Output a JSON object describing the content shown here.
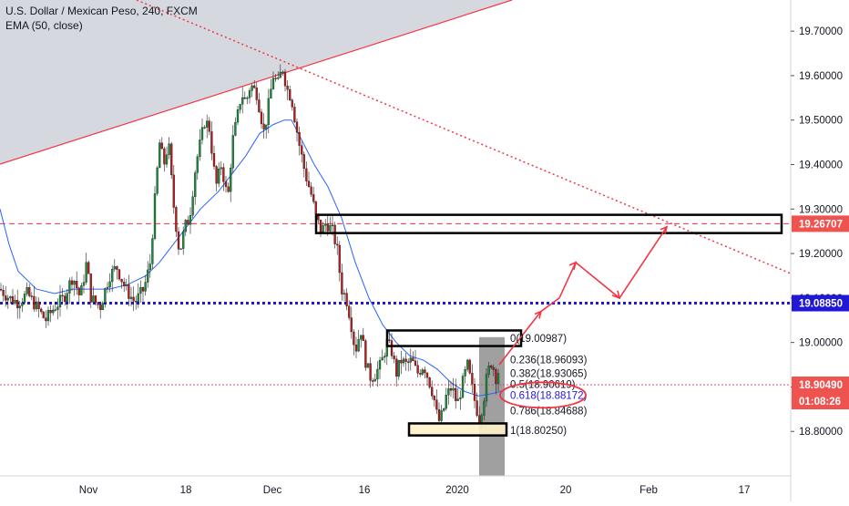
{
  "chart_data": {
    "type": "candlestick",
    "title": "U.S. Dollar / Mexican Peso, 240, FXCM",
    "indicator_label": "EMA (50, close)",
    "y_ticks": [
      "19.70000",
      "19.60000",
      "19.50000",
      "19.40000",
      "19.30000",
      "19.20000",
      "19.10000",
      "19.00000",
      "18.90000",
      "18.80000"
    ],
    "y_tick_values": [
      19.7,
      19.6,
      19.5,
      19.4,
      19.3,
      19.2,
      19.1,
      19.0,
      18.9,
      18.8
    ],
    "ylim": [
      18.7,
      19.77
    ],
    "x_ticks": [
      "Nov",
      "18",
      "Dec",
      "16",
      "2020",
      "20",
      "Feb",
      "17"
    ],
    "price_labels": [
      {
        "text": "19.26707",
        "value": 19.26707,
        "bg": "#ef5350"
      },
      {
        "text": "19.08850",
        "value": 19.0885,
        "bg": "#2118d6"
      },
      {
        "text": "18.90490",
        "value": 18.9049,
        "bg": "#ef5350"
      }
    ],
    "countdown": "01:08:26",
    "fib_levels": [
      {
        "label": "0(19.00987)",
        "value": 19.00987
      },
      {
        "label": "0.236(18.96093)",
        "value": 18.96093
      },
      {
        "label": "0.382(18.93065)",
        "value": 18.93065
      },
      {
        "label": "0.5(18.90619)",
        "value": 18.90619
      },
      {
        "label": "0.618(18.88172)",
        "value": 18.88172
      },
      {
        "label": "0.786(18.84688)",
        "value": 18.84688
      },
      {
        "label": "1(18.80250)",
        "value": 18.8025
      }
    ],
    "price_path": [
      [
        0,
        19.12
      ],
      [
        10,
        19.1
      ],
      [
        20,
        19.09
      ],
      [
        30,
        19.11
      ],
      [
        40,
        19.08
      ],
      [
        50,
        19.05
      ],
      [
        60,
        19.08
      ],
      [
        70,
        19.1
      ],
      [
        80,
        19.15
      ],
      [
        88,
        19.1
      ],
      [
        95,
        19.18
      ],
      [
        100,
        19.1
      ],
      [
        110,
        19.08
      ],
      [
        120,
        19.15
      ],
      [
        128,
        19.17
      ],
      [
        138,
        19.12
      ],
      [
        148,
        19.09
      ],
      [
        158,
        19.12
      ],
      [
        165,
        19.18
      ],
      [
        170,
        19.32
      ],
      [
        175,
        19.45
      ],
      [
        180,
        19.4
      ],
      [
        185,
        19.45
      ],
      [
        190,
        19.32
      ],
      [
        197,
        19.2
      ],
      [
        203,
        19.26
      ],
      [
        208,
        19.28
      ],
      [
        215,
        19.4
      ],
      [
        220,
        19.45
      ],
      [
        225,
        19.5
      ],
      [
        230,
        19.48
      ],
      [
        237,
        19.35
      ],
      [
        243,
        19.4
      ],
      [
        250,
        19.32
      ],
      [
        255,
        19.45
      ],
      [
        260,
        19.5
      ],
      [
        265,
        19.56
      ],
      [
        270,
        19.54
      ],
      [
        275,
        19.58
      ],
      [
        282,
        19.56
      ],
      [
        290,
        19.47
      ],
      [
        296,
        19.55
      ],
      [
        300,
        19.6
      ],
      [
        305,
        19.58
      ],
      [
        310,
        19.62
      ],
      [
        315,
        19.57
      ],
      [
        320,
        19.55
      ],
      [
        328,
        19.45
      ],
      [
        335,
        19.38
      ],
      [
        342,
        19.33
      ],
      [
        347,
        19.28
      ],
      [
        353,
        19.25
      ],
      [
        358,
        19.27
      ],
      [
        365,
        19.25
      ],
      [
        370,
        19.21
      ],
      [
        375,
        19.12
      ],
      [
        380,
        19.1
      ],
      [
        385,
        19.05
      ],
      [
        390,
        18.98
      ],
      [
        396,
        19.03
      ],
      [
        402,
        18.95
      ],
      [
        407,
        18.92
      ],
      [
        412,
        18.93
      ],
      [
        418,
        18.95
      ],
      [
        425,
        19.0
      ],
      [
        430,
        18.98
      ],
      [
        435,
        18.93
      ],
      [
        440,
        18.96
      ],
      [
        446,
        18.95
      ],
      [
        452,
        18.96
      ],
      [
        458,
        18.93
      ],
      [
        465,
        18.95
      ],
      [
        470,
        18.92
      ],
      [
        476,
        18.88
      ],
      [
        481,
        18.82
      ],
      [
        486,
        18.84
      ],
      [
        490,
        18.88
      ],
      [
        496,
        18.9
      ],
      [
        502,
        18.86
      ],
      [
        508,
        18.91
      ],
      [
        513,
        18.95
      ],
      [
        518,
        18.9
      ],
      [
        522,
        18.86
      ],
      [
        526,
        18.83
      ],
      [
        530,
        18.86
      ],
      [
        535,
        18.93
      ],
      [
        540,
        18.96
      ],
      [
        544,
        18.92
      ],
      [
        548,
        18.94
      ]
    ],
    "ema_path": [
      [
        0,
        19.3
      ],
      [
        10,
        19.22
      ],
      [
        20,
        19.16
      ],
      [
        40,
        19.12
      ],
      [
        60,
        19.11
      ],
      [
        80,
        19.12
      ],
      [
        100,
        19.12
      ],
      [
        120,
        19.12
      ],
      [
        140,
        19.13
      ],
      [
        160,
        19.15
      ],
      [
        175,
        19.18
      ],
      [
        190,
        19.22
      ],
      [
        205,
        19.26
      ],
      [
        220,
        19.3
      ],
      [
        240,
        19.34
      ],
      [
        255,
        19.38
      ],
      [
        270,
        19.42
      ],
      [
        285,
        19.47
      ],
      [
        300,
        19.49
      ],
      [
        312,
        19.5
      ],
      [
        320,
        19.5
      ],
      [
        330,
        19.46
      ],
      [
        345,
        19.4
      ],
      [
        360,
        19.35
      ],
      [
        375,
        19.28
      ],
      [
        390,
        19.18
      ],
      [
        405,
        19.1
      ],
      [
        420,
        19.04
      ],
      [
        435,
        19.0
      ],
      [
        450,
        18.97
      ],
      [
        465,
        18.96
      ],
      [
        480,
        18.94
      ],
      [
        495,
        18.91
      ],
      [
        510,
        18.89
      ],
      [
        525,
        18.88
      ],
      [
        540,
        18.885
      ],
      [
        550,
        18.89
      ]
    ],
    "grid": false,
    "legend": "top-left"
  }
}
